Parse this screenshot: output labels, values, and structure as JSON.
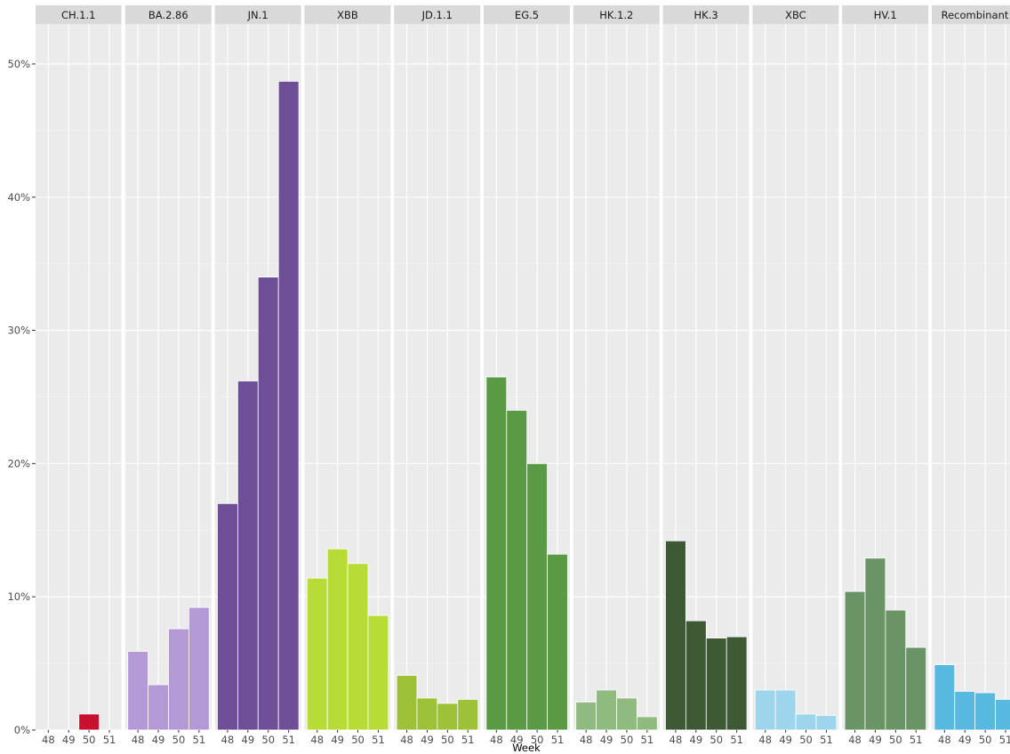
{
  "chart_data": {
    "type": "bar",
    "xlabel": "Week",
    "ylabel": "",
    "ylim": [
      0,
      0.53
    ],
    "y_ticks": [
      {
        "value": 0,
        "label": "0%"
      },
      {
        "value": 0.1,
        "label": "10%"
      },
      {
        "value": 0.2,
        "label": "20%"
      },
      {
        "value": 0.3,
        "label": "30%"
      },
      {
        "value": 0.4,
        "label": "40%"
      },
      {
        "value": 0.5,
        "label": "50%"
      }
    ],
    "categories": [
      "48",
      "49",
      "50",
      "51"
    ],
    "grid": true,
    "facets": [
      {
        "name": "CH.1.1",
        "color": "#C8102E",
        "values": [
          null,
          null,
          0.012,
          null
        ]
      },
      {
        "name": "BA.2.86",
        "color": "#B39AD6",
        "values": [
          0.059,
          0.034,
          0.076,
          0.092
        ]
      },
      {
        "name": "JN.1",
        "color": "#6F4E98",
        "values": [
          0.17,
          0.262,
          0.34,
          0.487
        ]
      },
      {
        "name": "XBB",
        "color": "#B8DC36",
        "values": [
          0.114,
          0.136,
          0.125,
          0.086
        ]
      },
      {
        "name": "JD.1.1",
        "color": "#9DC23A",
        "values": [
          0.041,
          0.024,
          0.02,
          0.023
        ]
      },
      {
        "name": "EG.5",
        "color": "#5A9A45",
        "values": [
          0.265,
          0.24,
          0.2,
          0.132
        ]
      },
      {
        "name": "HK.1.2",
        "color": "#8FBB7E",
        "values": [
          0.021,
          0.03,
          0.024,
          0.01
        ]
      },
      {
        "name": "HK.3",
        "color": "#3E5A35",
        "values": [
          0.142,
          0.082,
          0.069,
          0.07
        ]
      },
      {
        "name": "XBC",
        "color": "#9DD6EC",
        "values": [
          0.03,
          0.03,
          0.012,
          0.011
        ]
      },
      {
        "name": "HV.1",
        "color": "#6A9466",
        "values": [
          0.104,
          0.129,
          0.09,
          0.062
        ]
      },
      {
        "name": "Recombinant",
        "color": "#57B9DF",
        "values": [
          0.049,
          0.029,
          0.028,
          0.023
        ]
      }
    ]
  }
}
